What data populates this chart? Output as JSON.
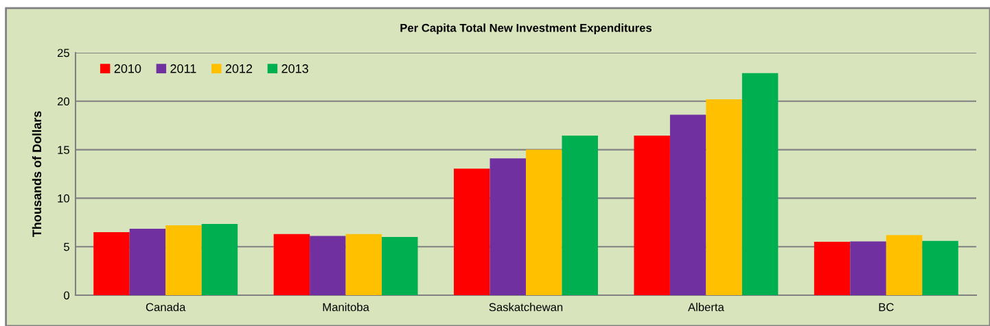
{
  "chart_data": {
    "type": "bar",
    "title": "Per Capita Total New Investment Expenditures",
    "ylabel": "Thousands of Dollars",
    "categories": [
      "Canada",
      "Manitoba",
      "Saskatchewan",
      "Alberta",
      "BC"
    ],
    "series": [
      {
        "name": "2010",
        "color": "#ff0000",
        "values": [
          6.5,
          6.3,
          13.05,
          16.45,
          5.5
        ]
      },
      {
        "name": "2011",
        "color": "#7030a0",
        "values": [
          6.85,
          6.1,
          14.1,
          18.6,
          5.55
        ]
      },
      {
        "name": "2012",
        "color": "#ffc000",
        "values": [
          7.2,
          6.3,
          15.0,
          20.2,
          6.2
        ]
      },
      {
        "name": "2013",
        "color": "#00b050",
        "values": [
          7.35,
          6.0,
          16.45,
          22.9,
          5.6
        ]
      }
    ],
    "ylim": [
      0,
      25
    ],
    "yticks": [
      0,
      5,
      10,
      15,
      20,
      25
    ],
    "grid": "y",
    "legend": "top left"
  }
}
